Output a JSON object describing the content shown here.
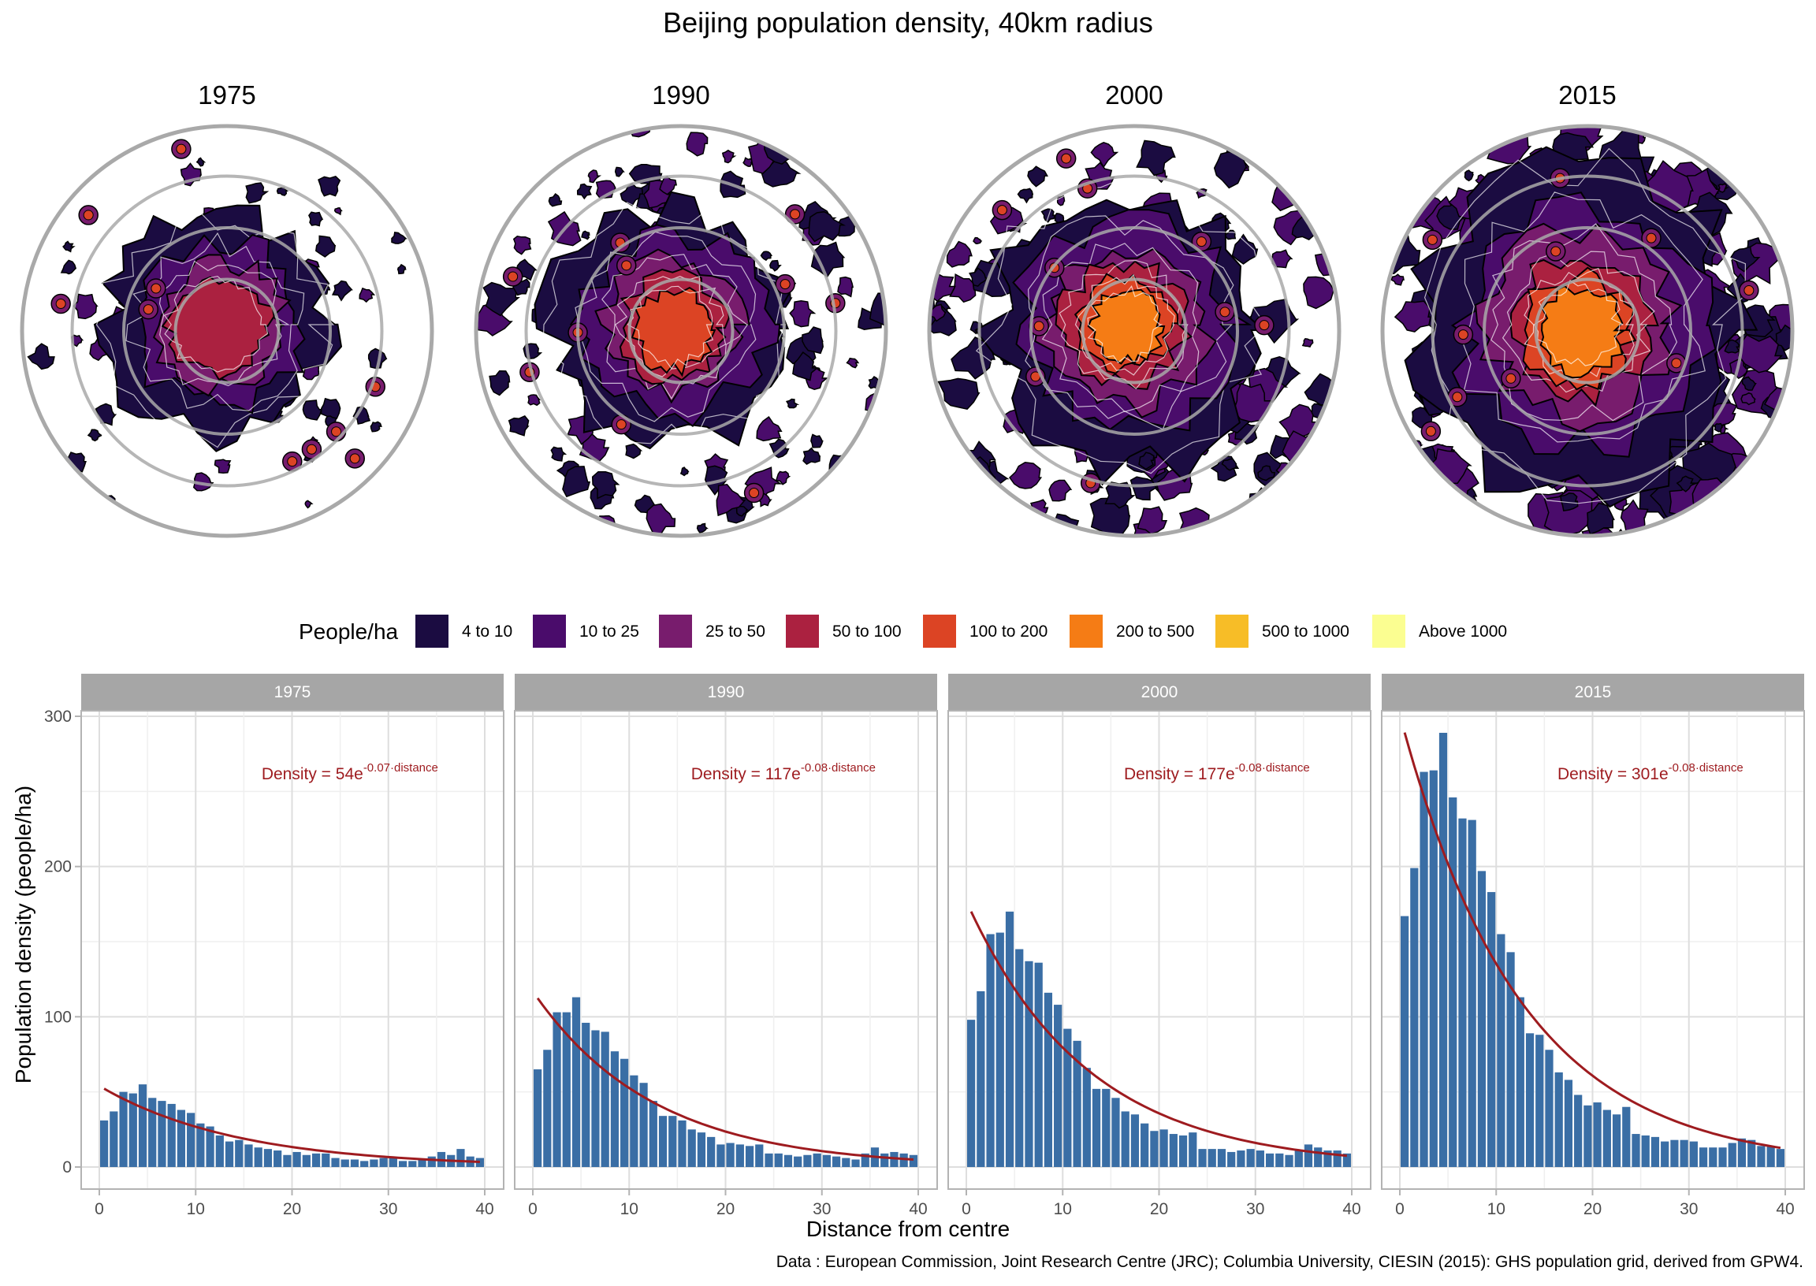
{
  "title": "Beijing population density, 40km radius",
  "maps": {
    "panels": [
      {
        "year": "1975",
        "core_level": 3
      },
      {
        "year": "1990",
        "core_level": 4
      },
      {
        "year": "2000",
        "core_level": 5
      },
      {
        "year": "2015",
        "core_level": 5
      }
    ]
  },
  "legend": {
    "title": "People/ha",
    "items": [
      {
        "label": "4 to 10",
        "color": "#1b0c41"
      },
      {
        "label": "10 to 25",
        "color": "#4a0c6b"
      },
      {
        "label": "25 to 50",
        "color": "#781c6d"
      },
      {
        "label": "50 to 100",
        "color": "#ab2140"
      },
      {
        "label": "100 to 200",
        "color": "#dc4424"
      },
      {
        "label": "200 to 500",
        "color": "#f57c15"
      },
      {
        "label": "500 to 1000",
        "color": "#f7bd27"
      },
      {
        "label": "Above 1000",
        "color": "#fbfe91"
      }
    ]
  },
  "chart_data": {
    "type": "bar",
    "facets": [
      "1975",
      "1990",
      "2000",
      "2015"
    ],
    "xlabel": "Distance from centre",
    "ylabel": "Population density (people/ha)",
    "xlim": [
      0,
      40
    ],
    "ylim": [
      0,
      300
    ],
    "x_ticks": [
      0,
      10,
      20,
      30,
      40
    ],
    "y_ticks": [
      0,
      100,
      200,
      300
    ],
    "grid": true,
    "bar_color": "#3a6ea5",
    "fit_color": "#9e1b1f",
    "x": [
      0,
      1,
      2,
      3,
      4,
      5,
      6,
      7,
      8,
      9,
      10,
      11,
      12,
      13,
      14,
      15,
      16,
      17,
      18,
      19,
      20,
      21,
      22,
      23,
      24,
      25,
      26,
      27,
      28,
      29,
      30,
      31,
      32,
      33,
      34,
      35,
      36,
      37,
      38,
      39
    ],
    "series": [
      {
        "name": "1975",
        "values": [
          31,
          37,
          50,
          49,
          55,
          46,
          44,
          42,
          38,
          36,
          29,
          27,
          21,
          17,
          18,
          15,
          13,
          12,
          11,
          8,
          10,
          8,
          9,
          9,
          6,
          5,
          5,
          4,
          5,
          6,
          6,
          4,
          4,
          5,
          7,
          10,
          8,
          12,
          7,
          6
        ],
        "fit": {
          "a": 54,
          "b": 0.07,
          "label_prefix": "Density = ",
          "label_coef": "54e",
          "label_exp": "-0.07·distance"
        }
      },
      {
        "name": "1990",
        "values": [
          65,
          78,
          103,
          103,
          113,
          96,
          91,
          90,
          77,
          72,
          61,
          56,
          44,
          34,
          34,
          31,
          25,
          23,
          20,
          15,
          16,
          15,
          14,
          15,
          9,
          9,
          8,
          7,
          8,
          9,
          8,
          7,
          6,
          5,
          9,
          13,
          9,
          10,
          9,
          8
        ],
        "fit": {
          "a": 117,
          "b": 0.08,
          "label_prefix": "Density = ",
          "label_coef": "117e",
          "label_exp": "-0.08·distance"
        }
      },
      {
        "name": "2000",
        "values": [
          98,
          117,
          155,
          156,
          170,
          145,
          137,
          136,
          116,
          108,
          92,
          84,
          66,
          52,
          52,
          46,
          37,
          35,
          29,
          24,
          25,
          22,
          21,
          23,
          12,
          12,
          12,
          10,
          11,
          12,
          11,
          9,
          9,
          8,
          11,
          15,
          13,
          11,
          11,
          9
        ],
        "fit": {
          "a": 177,
          "b": 0.08,
          "label_prefix": "Density = ",
          "label_coef": "177e",
          "label_exp": "-0.08·distance"
        }
      },
      {
        "name": "2015",
        "values": [
          167,
          199,
          263,
          264,
          289,
          246,
          232,
          231,
          197,
          183,
          155,
          143,
          113,
          89,
          88,
          78,
          63,
          58,
          48,
          41,
          43,
          38,
          35,
          40,
          22,
          21,
          20,
          17,
          18,
          18,
          17,
          13,
          13,
          13,
          16,
          19,
          18,
          14,
          14,
          12
        ],
        "fit": {
          "a": 301,
          "b": 0.08,
          "label_prefix": "Density = ",
          "label_coef": "301e",
          "label_exp": "-0.08·distance"
        }
      }
    ]
  },
  "caption": "Data : European Commission, Joint Research Centre (JRC); Columbia University, CIESIN (2015): GHS population grid, derived from GPW4."
}
